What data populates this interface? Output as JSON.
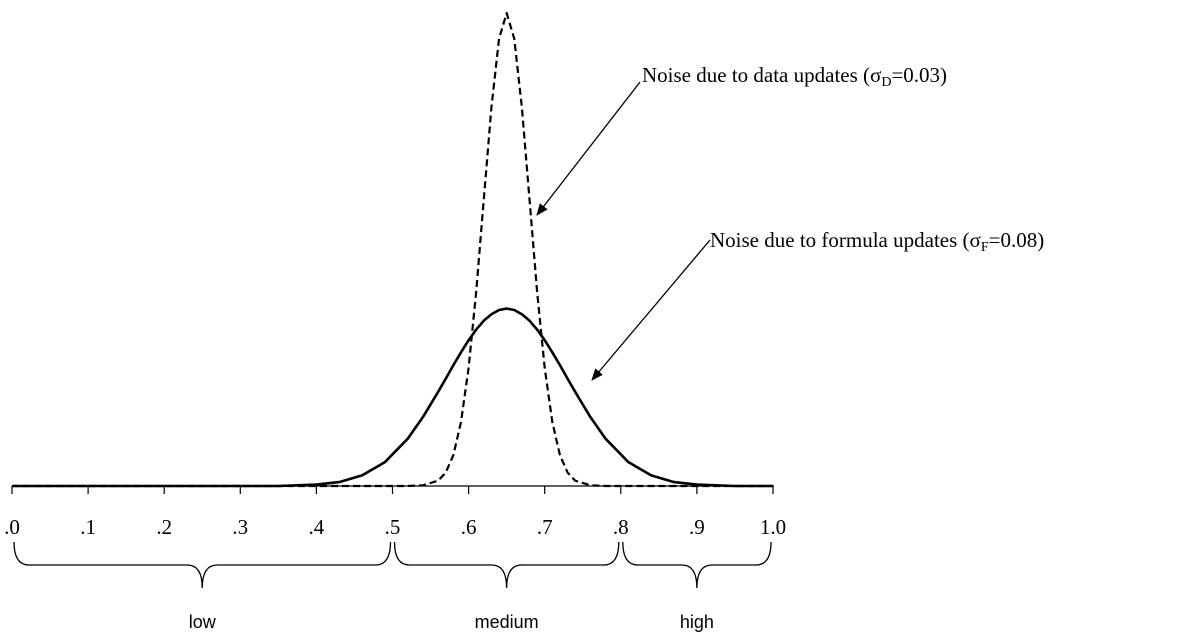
{
  "chart_data": {
    "type": "line",
    "x": [
      0,
      0.1,
      0.2,
      0.3,
      0.35,
      0.4,
      0.43,
      0.46,
      0.49,
      0.52,
      0.54,
      0.56,
      0.57,
      0.58,
      0.59,
      0.6,
      0.61,
      0.62,
      0.63,
      0.64,
      0.65,
      0.66,
      0.67,
      0.68,
      0.69,
      0.7,
      0.71,
      0.72,
      0.73,
      0.74,
      0.76,
      0.78,
      0.81,
      0.84,
      0.87,
      0.9,
      0.95,
      1
    ],
    "series": [
      {
        "color": "#000000",
        "dash": false,
        "values": [
          0,
          0,
          0,
          0,
          0,
          0.04,
          0.11,
          0.3,
          0.67,
          1.33,
          1.94,
          2.65,
          3.02,
          3.4,
          3.76,
          4.1,
          4.4,
          4.65,
          4.83,
          4.95,
          4.99,
          4.95,
          4.83,
          4.65,
          4.4,
          4.1,
          3.76,
          3.4,
          3.02,
          2.65,
          1.94,
          1.33,
          0.67,
          0.3,
          0.11,
          0.04,
          0,
          0
        ]
      },
      {
        "color": "#000000",
        "dash": true,
        "values": [
          0,
          0,
          0,
          0,
          0,
          0,
          0,
          0,
          0,
          0,
          0.02,
          0.15,
          0.38,
          0.87,
          1.8,
          3.32,
          5.47,
          8.07,
          10.65,
          12.58,
          13.3,
          12.58,
          10.65,
          8.07,
          5.47,
          3.32,
          1.8,
          0.87,
          0.38,
          0.15,
          0.02,
          0,
          0,
          0,
          0,
          0,
          0,
          0
        ]
      }
    ],
    "xlim": [
      0,
      1
    ],
    "ylim": [
      0,
      13.5
    ],
    "xticks": [
      {
        "value": 0,
        "label": ".0"
      },
      {
        "value": 0.1,
        "label": ".1"
      },
      {
        "value": 0.2,
        "label": ".2"
      },
      {
        "value": 0.3,
        "label": ".3"
      },
      {
        "value": 0.4,
        "label": ".4"
      },
      {
        "value": 0.5,
        "label": ".5"
      },
      {
        "value": 0.6,
        "label": ".6"
      },
      {
        "value": 0.7,
        "label": ".7"
      },
      {
        "value": 0.8,
        "label": ".8"
      },
      {
        "value": 0.9,
        "label": ".9"
      },
      {
        "value": 1,
        "label": "1.0"
      }
    ],
    "ranges": [
      {
        "label": "low",
        "from": 0,
        "to": 0.5
      },
      {
        "label": "medium",
        "from": 0.5,
        "to": 0.8
      },
      {
        "label": "high",
        "from": 0.8,
        "to": 1
      }
    ],
    "annotations": [
      {
        "text": "Noise due to data updates (σ",
        "subscript": "D",
        "text_after": "=0.03)"
      },
      {
        "text": "Noise due to formula updates (σ",
        "subscript": "F",
        "text_after": "=0.08)"
      }
    ]
  }
}
